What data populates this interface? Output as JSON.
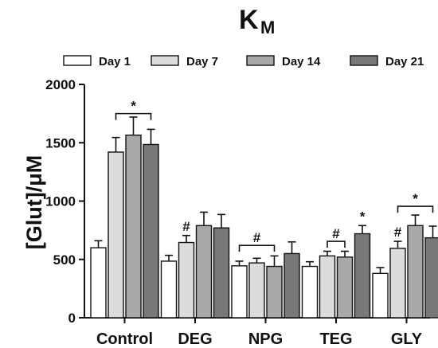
{
  "chart_data": {
    "type": "bar",
    "title": "K",
    "title_subscript": "M",
    "ylabel": "[Glut]/μM",
    "xlabel": "",
    "ylim": [
      0,
      2000
    ],
    "yticks": [
      0,
      500,
      1000,
      1500,
      2000
    ],
    "ytick_labels": [
      "0",
      "500",
      "1000",
      "1500",
      "2000"
    ],
    "grid": false,
    "legend_position": "top",
    "categories": [
      "Control",
      "DEG",
      "NPG",
      "TEG",
      "GLY"
    ],
    "series": [
      {
        "name": "Day 1",
        "color": "#ffffff",
        "values": [
          600,
          485,
          445,
          440,
          380
        ],
        "errors": [
          60,
          50,
          40,
          40,
          50
        ]
      },
      {
        "name": "Day 7",
        "color": "#dcdcdc",
        "values": [
          1420,
          645,
          470,
          530,
          595
        ],
        "errors": [
          125,
          60,
          40,
          40,
          60
        ]
      },
      {
        "name": "Day 14",
        "color": "#a9a9a9",
        "values": [
          1565,
          790,
          440,
          520,
          790
        ],
        "errors": [
          155,
          115,
          90,
          50,
          90
        ]
      },
      {
        "name": "Day 21",
        "color": "#787878",
        "values": [
          1485,
          770,
          550,
          720,
          685
        ],
        "errors": [
          130,
          115,
          100,
          70,
          100
        ]
      }
    ],
    "annotations": [
      {
        "category": 0,
        "text": "*",
        "bracket": [
          1,
          3
        ],
        "y": 1750
      },
      {
        "category": 1,
        "text": "#",
        "series": 1,
        "y": 745
      },
      {
        "category": 2,
        "text": "#",
        "bracket": [
          0,
          2
        ],
        "y": 620
      },
      {
        "category": 3,
        "text": "#",
        "bracket": [
          1,
          2
        ],
        "y": 655
      },
      {
        "category": 3,
        "text": "*",
        "series": 3,
        "y": 830
      },
      {
        "category": 4,
        "text": "#",
        "series": 1,
        "y": 695
      },
      {
        "category": 4,
        "text": "*",
        "bracket": [
          1,
          3
        ],
        "y": 955
      }
    ]
  }
}
